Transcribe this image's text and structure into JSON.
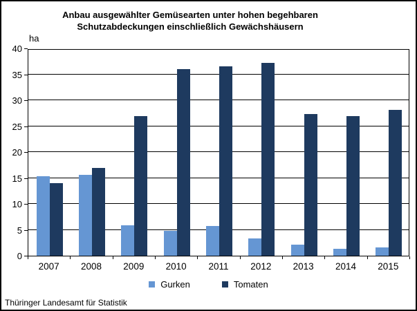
{
  "title": {
    "line1": "Anbau ausgewählter Gemüsearten unter hohen begehbaren",
    "line2": "Schutzabdeckungen einschließlich Gewächshäusern"
  },
  "footer": {
    "source": "Thüringer Landesamt für Statistik"
  },
  "chart_data": {
    "type": "bar",
    "title": "Anbau ausgewählter Gemüsearten unter hohen begehbaren Schutzabdeckungen einschließlich Gewächshäusern",
    "title_line1": "Anbau ausgewählter Gemüsearten unter hohen begehbaren",
    "title_line2": "Schutzabdeckungen einschließlich Gewächshäusern",
    "unit_label": "ha",
    "xlabel": "",
    "ylabel": "ha",
    "categories": [
      "2007",
      "2008",
      "2009",
      "2010",
      "2011",
      "2012",
      "2013",
      "2014",
      "2015"
    ],
    "series": [
      {
        "name": "Gurken",
        "color": "#6596D3",
        "values": [
          15.4,
          15.6,
          5.9,
          4.8,
          5.7,
          3.3,
          2.2,
          1.3,
          1.6
        ]
      },
      {
        "name": "Tomaten",
        "color": "#1E3A5F",
        "values": [
          14.0,
          17.0,
          27.0,
          36.0,
          36.5,
          37.2,
          27.3,
          26.9,
          28.2
        ]
      }
    ],
    "ylim": [
      0,
      40
    ],
    "ytick_step": 5,
    "grid": true,
    "legend_position": "bottom",
    "axis_color": "#000000",
    "background_color": "#ffffff"
  }
}
